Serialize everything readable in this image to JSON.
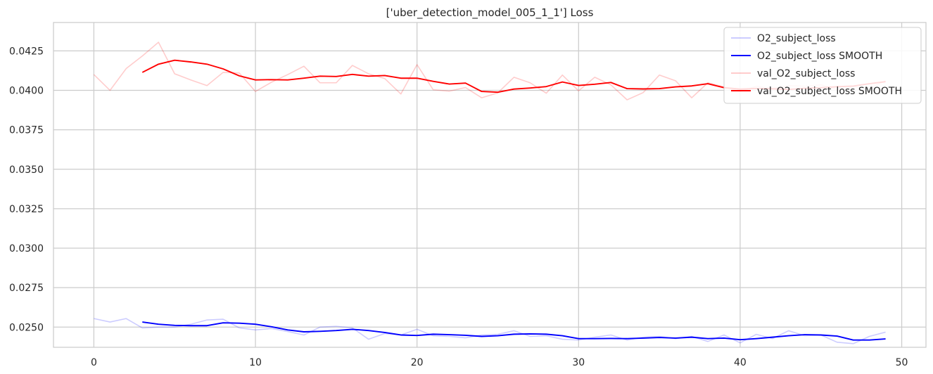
{
  "chart_data": {
    "type": "line",
    "title": "['uber_detection_model_005_1_1'] Loss",
    "xlabel": "",
    "ylabel": "",
    "xlim": [
      -2.5,
      51.5
    ],
    "ylim": [
      0.02372,
      0.0443
    ],
    "x_ticks": [
      0,
      10,
      20,
      30,
      40,
      50
    ],
    "x_tick_labels": [
      "0",
      "10",
      "20",
      "30",
      "40",
      "50"
    ],
    "y_ticks": [
      0.025,
      0.0275,
      0.03,
      0.0325,
      0.035,
      0.0375,
      0.04,
      0.0425
    ],
    "y_tick_labels": [
      "0.0250",
      "0.0275",
      "0.0300",
      "0.0325",
      "0.0350",
      "0.0375",
      "0.0400",
      "0.0425"
    ],
    "grid": true,
    "legend_position": "top-right",
    "series": [
      {
        "name": "O2_subject_loss",
        "color": "#0000ff",
        "alpha": 0.2,
        "x_start": 0,
        "values": [
          0.02554,
          0.02532,
          0.02554,
          0.02495,
          0.025,
          0.025,
          0.02518,
          0.02545,
          0.0255,
          0.02495,
          0.02482,
          0.02491,
          0.02472,
          0.0245,
          0.025,
          0.02505,
          0.02495,
          0.02423,
          0.02459,
          0.0245,
          0.02486,
          0.02445,
          0.02441,
          0.02432,
          0.0245,
          0.02454,
          0.02477,
          0.02441,
          0.02445,
          0.02423,
          0.02418,
          0.02436,
          0.0245,
          0.02418,
          0.02436,
          0.02441,
          0.02427,
          0.02441,
          0.02409,
          0.0245,
          0.024,
          0.02454,
          0.02427,
          0.02477,
          0.02445,
          0.0245,
          0.02404,
          0.02395,
          0.02441,
          0.02468
        ]
      },
      {
        "name": "O2_subject_loss SMOOTH",
        "color": "#0000ff",
        "alpha": 1.0,
        "x_start": 3,
        "values": [
          0.02532,
          0.02518,
          0.02511,
          0.02509,
          0.02509,
          0.02527,
          0.02525,
          0.02518,
          0.02502,
          0.02482,
          0.0247,
          0.02473,
          0.02478,
          0.02486,
          0.02478,
          0.02466,
          0.0245,
          0.02447,
          0.02455,
          0.02452,
          0.02448,
          0.02441,
          0.02445,
          0.02455,
          0.02457,
          0.02455,
          0.02445,
          0.02427,
          0.02427,
          0.02428,
          0.02427,
          0.0243,
          0.02434,
          0.0243,
          0.02436,
          0.02427,
          0.0243,
          0.0242,
          0.02427,
          0.02436,
          0.02445,
          0.02452,
          0.0245,
          0.02443,
          0.02418,
          0.02418,
          0.02425
        ]
      },
      {
        "name": "val_O2_subject_loss",
        "color": "#ff0000",
        "alpha": 0.2,
        "x_start": 0,
        "values": [
          0.041,
          0.04,
          0.04138,
          0.04218,
          0.04305,
          0.04105,
          0.04066,
          0.0403,
          0.04114,
          0.0411,
          0.03993,
          0.04052,
          0.041,
          0.04153,
          0.04048,
          0.04048,
          0.04158,
          0.04105,
          0.04075,
          0.03977,
          0.04163,
          0.04004,
          0.03995,
          0.04018,
          0.03953,
          0.03984,
          0.04083,
          0.04048,
          0.03982,
          0.04097,
          0.03997,
          0.04083,
          0.04035,
          0.0394,
          0.03986,
          0.04097,
          0.04061,
          0.03953,
          0.04048,
          0.04022,
          0.03991,
          0.04026,
          0.04013,
          0.0403,
          0.04026,
          0.04035,
          0.04006,
          0.04022,
          0.04013,
          0.04061
        ]
      },
      {
        "name": "val_O2_subject_loss SMOOTH",
        "color": "#ff0000",
        "alpha": 1.0,
        "x_start": 3,
        "values": [
          0.04114,
          0.04166,
          0.04191,
          0.0418,
          0.04166,
          0.04136,
          0.04092,
          0.04066,
          0.04068,
          0.04066,
          0.04077,
          0.0409,
          0.04088,
          0.04101,
          0.0409,
          0.04094,
          0.04077,
          0.04077,
          0.04057,
          0.0404,
          0.04046,
          0.03993,
          0.03988,
          0.04008,
          0.04015,
          0.04024,
          0.04053,
          0.04031,
          0.04039,
          0.0405,
          0.04011,
          0.04009,
          0.04011,
          0.04022,
          0.04028,
          0.04042,
          0.04017,
          0.04008,
          0.04012,
          0.0401,
          0.04006,
          0.04013,
          0.04017,
          0.04023,
          0.04027,
          0.04042,
          0.04055
        ]
      }
    ]
  }
}
